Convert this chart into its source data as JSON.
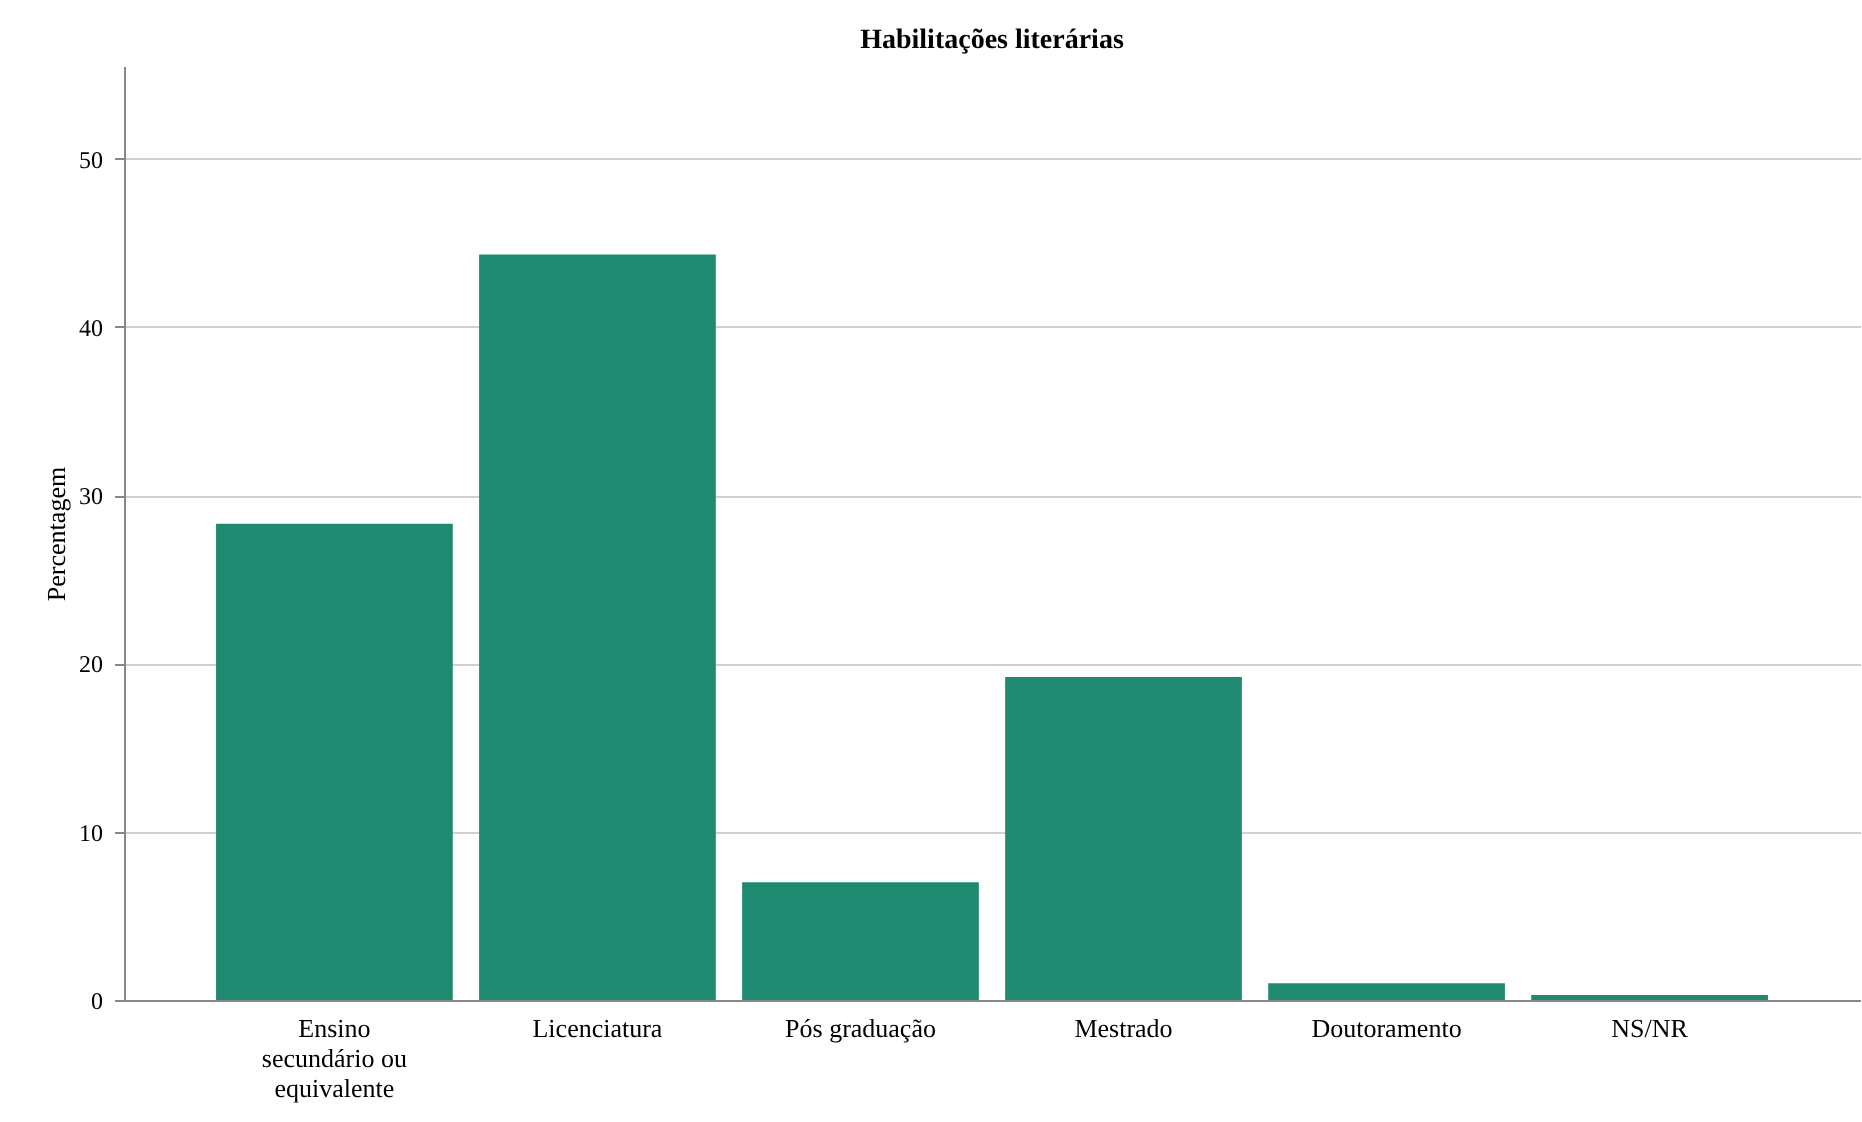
{
  "chart_data": {
    "type": "bar",
    "title": "Habilitações literárias",
    "ylabel": "Percentagem",
    "categories": [
      "Ensino secundário ou equivalente",
      "Licenciatura",
      "Pós graduação",
      "Mestrado",
      "Doutoramento",
      "NS/NR"
    ],
    "values": [
      28.3,
      44.3,
      7.0,
      19.2,
      1.0,
      0.3
    ],
    "color": "#1f8a70",
    "ylim": [
      0,
      55.5
    ],
    "yticks": [
      0,
      10,
      20,
      30,
      40,
      50
    ],
    "grid": "y"
  }
}
